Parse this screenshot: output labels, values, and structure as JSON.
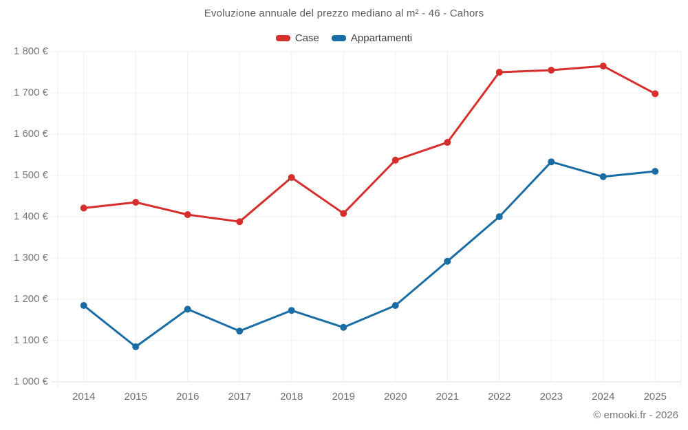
{
  "chart": {
    "title": "Evoluzione annuale del prezzo mediano al m² - 46 - Cahors"
  },
  "chart_data": {
    "type": "line",
    "title": "Evoluzione annuale del prezzo mediano al m² - 46 - Cahors",
    "categories": [
      "2014",
      "2015",
      "2016",
      "2017",
      "2018",
      "2019",
      "2020",
      "2021",
      "2022",
      "2023",
      "2024",
      "2025"
    ],
    "series": [
      {
        "name": "Case",
        "color": "#d62e2b",
        "values": [
          1421,
          1435,
          1405,
          1388,
          1495,
          1408,
          1537,
          1580,
          1750,
          1755,
          1765,
          1698
        ]
      },
      {
        "name": "Appartamenti",
        "color": "#1a6ca4",
        "values": [
          1185,
          1085,
          1176,
          1123,
          1173,
          1132,
          1185,
          1292,
          1400,
          1533,
          1497,
          1510
        ]
      }
    ],
    "ylim": [
      1000,
      1800
    ],
    "ytick_step": 100,
    "ytick_labels": [
      "1 000 €",
      "1 100 €",
      "1 200 €",
      "1 300 €",
      "1 400 €",
      "1 500 €",
      "1 600 €",
      "1 700 €",
      "1 800 €"
    ],
    "xlabel": "",
    "ylabel": "",
    "grid": true,
    "legend_position": "top",
    "colors": {
      "grid_line": "#ededed",
      "axis_line": "#e0e0e0",
      "tick_text": "#757575"
    }
  },
  "legend": {
    "items": [
      {
        "label": "Case"
      },
      {
        "label": "Appartamenti"
      }
    ]
  },
  "footer": {
    "copyright": "© emooki.fr - 2026"
  }
}
